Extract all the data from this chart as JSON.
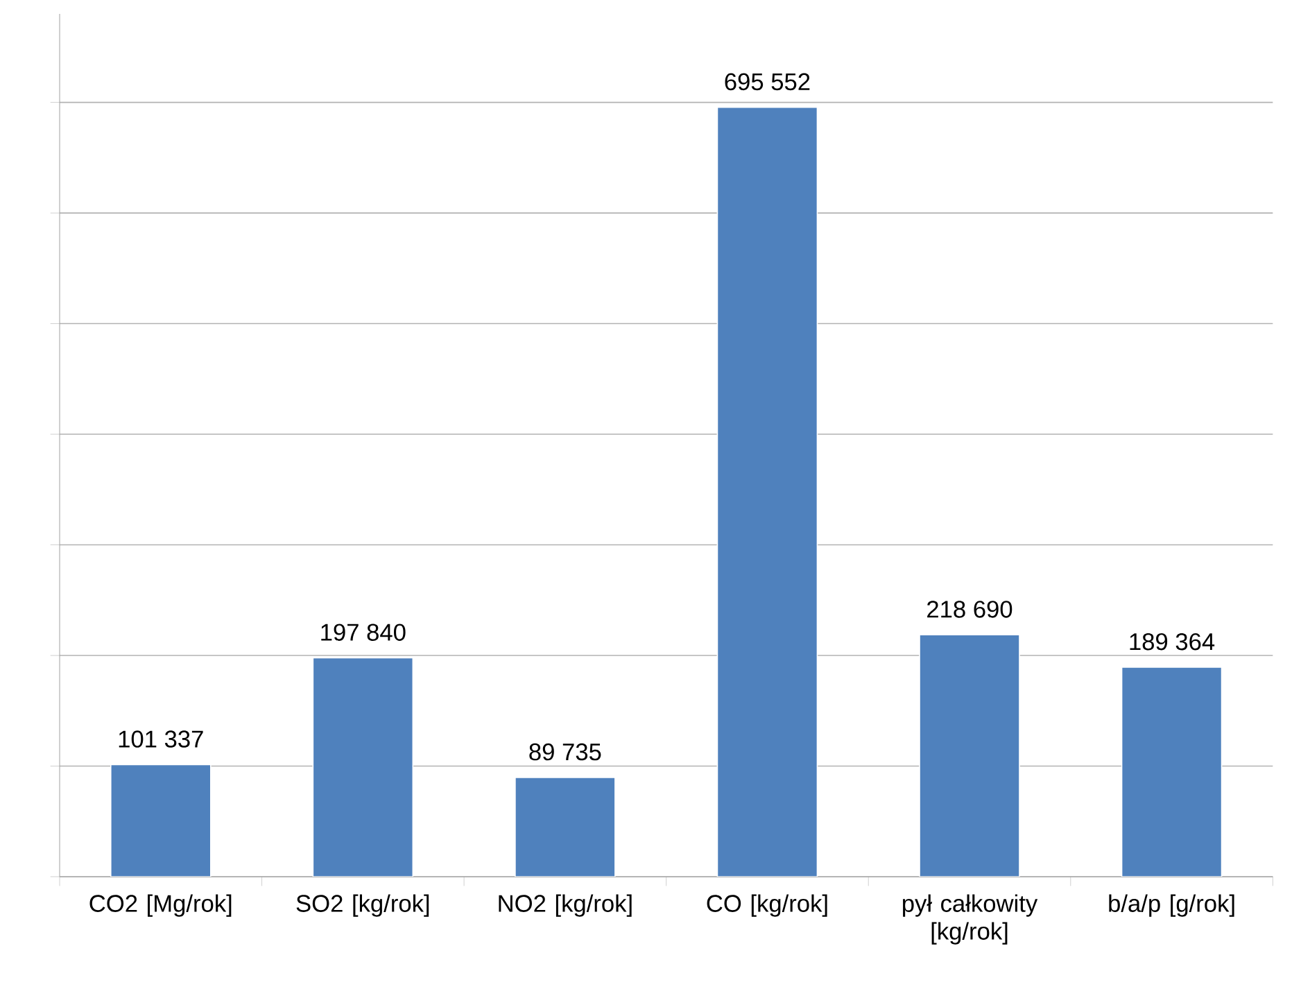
{
  "chart_data": {
    "type": "bar",
    "categories": [
      "CO2 [Mg/rok]",
      "SO2 [kg/rok]",
      "NO2 [kg/rok]",
      "CO [kg/rok]",
      "pył całkowity [kg/rok]",
      "b/a/p [g/rok]"
    ],
    "values": [
      101337,
      197840,
      89735,
      695552,
      218690,
      189364
    ],
    "value_labels": [
      "101 337",
      "197 840",
      "89 735",
      "695 552",
      "218 690",
      "189 364"
    ],
    "color": "#4f81bd",
    "ylim": [
      0,
      780000
    ],
    "yticks": [
      {
        "value": 0,
        "label": null
      },
      {
        "value": 100000,
        "label": null
      },
      {
        "value": 200000,
        "label": null
      },
      {
        "value": 300000,
        "label": null
      },
      {
        "value": 400000,
        "label": null
      },
      {
        "value": 500000,
        "label": null
      },
      {
        "value": 600000,
        "label": null
      },
      {
        "value": 700000,
        "label": null
      }
    ],
    "tick_labels": "x",
    "grid": "y"
  }
}
